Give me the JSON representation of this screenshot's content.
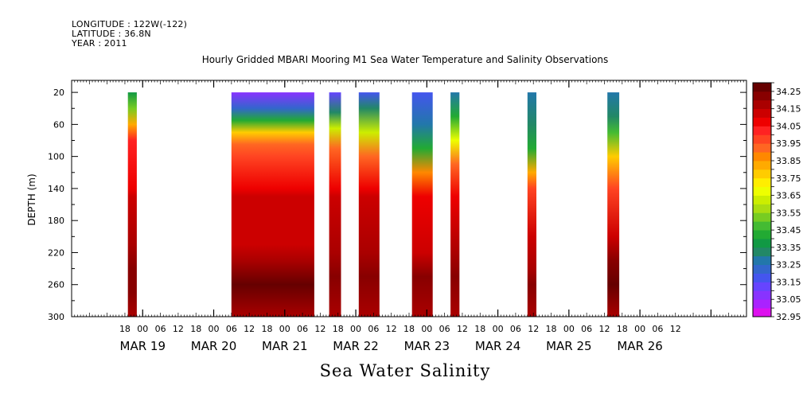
{
  "header": {
    "longitude": "LONGITUDE : 122W(-122)",
    "latitude": "LATITUDE : 36.8N",
    "year": "YEAR : 2011"
  },
  "chart_data": {
    "type": "heatmap",
    "title": "Hourly Gridded MBARI Mooring M1 Sea Water Temperature and Salinity Observations",
    "subtitle": "Sea Water Salinity",
    "xlabel": "",
    "ylabel": "DEPTH (m)",
    "x_range_hours_from_mar19_00": [
      -24,
      204
    ],
    "y_range_depth_m": [
      300,
      5
    ],
    "y_ticks": [
      20,
      60,
      100,
      140,
      180,
      220,
      260,
      300
    ],
    "x_hour_tick_labels": [
      "18",
      "00",
      "06",
      "12",
      "18",
      "00",
      "06",
      "12",
      "18",
      "00",
      "06",
      "12",
      "18",
      "00",
      "06",
      "12",
      "18",
      "00",
      "06",
      "12",
      "18",
      "00",
      "06",
      "12",
      "18",
      "00",
      "06",
      "12",
      "18",
      "00",
      "06",
      "12"
    ],
    "x_day_labels": [
      "MAR 19",
      "MAR 20",
      "MAR 21",
      "MAR 22",
      "MAR 23",
      "MAR 24",
      "MAR 25",
      "MAR 26"
    ],
    "colorbar_levels": [
      32.95,
      33.0,
      33.05,
      33.1,
      33.15,
      33.2,
      33.25,
      33.3,
      33.35,
      33.4,
      33.45,
      33.5,
      33.55,
      33.6,
      33.65,
      33.7,
      33.75,
      33.8,
      33.85,
      33.9,
      33.95,
      34.0,
      34.05,
      34.1,
      34.15,
      34.2,
      34.25,
      34.3
    ],
    "colorbar_labels": [
      "34.25",
      "34.15",
      "34.05",
      "33.95",
      "33.85",
      "33.75",
      "33.65",
      "33.55",
      "33.45",
      "33.35",
      "33.25",
      "33.15",
      "33.05",
      "32.95"
    ],
    "colorbar_colors": [
      "#dd11ee",
      "#aa22ff",
      "#8833ff",
      "#6644ff",
      "#4455ee",
      "#3366cc",
      "#2277aa",
      "#228866",
      "#119944",
      "#22aa33",
      "#44bb33",
      "#77cc22",
      "#aadd11",
      "#ccee00",
      "#eeff00",
      "#ffee00",
      "#ffcc00",
      "#ffaa00",
      "#ff8800",
      "#ff6622",
      "#ff4422",
      "#ff2222",
      "#ee0000",
      "#cc0000",
      "#aa0000",
      "#880000",
      "#660000"
    ],
    "data_segments": [
      {
        "start_hour": -5,
        "end_hour": -2,
        "profile": [
          [
            20,
            33.35
          ],
          [
            40,
            33.5
          ],
          [
            60,
            33.8
          ],
          [
            80,
            34.0
          ],
          [
            140,
            34.05
          ],
          [
            150,
            34.12
          ],
          [
            210,
            34.15
          ],
          [
            240,
            34.2
          ],
          [
            270,
            34.22
          ],
          [
            300,
            34.15
          ]
        ]
      },
      {
        "start_hour": 30,
        "end_hour": 58,
        "profile": [
          [
            20,
            33.08
          ],
          [
            40,
            33.2
          ],
          [
            55,
            33.4
          ],
          [
            70,
            33.75
          ],
          [
            85,
            33.9
          ],
          [
            100,
            33.98
          ],
          [
            140,
            34.05
          ],
          [
            150,
            34.1
          ],
          [
            210,
            34.13
          ],
          [
            230,
            34.18
          ],
          [
            260,
            34.25
          ],
          [
            280,
            34.2
          ],
          [
            300,
            34.15
          ]
        ]
      },
      {
        "start_hour": 63,
        "end_hour": 67,
        "profile": [
          [
            20,
            33.12
          ],
          [
            45,
            33.3
          ],
          [
            65,
            33.6
          ],
          [
            90,
            33.9
          ],
          [
            140,
            34.05
          ],
          [
            150,
            34.1
          ],
          [
            220,
            34.15
          ],
          [
            250,
            34.22
          ],
          [
            300,
            34.15
          ]
        ]
      },
      {
        "start_hour": 73,
        "end_hour": 80,
        "profile": [
          [
            20,
            33.18
          ],
          [
            40,
            33.3
          ],
          [
            70,
            33.6
          ],
          [
            100,
            33.9
          ],
          [
            140,
            34.05
          ],
          [
            150,
            34.1
          ],
          [
            220,
            34.15
          ],
          [
            250,
            34.22
          ],
          [
            300,
            34.15
          ]
        ]
      },
      {
        "start_hour": 91,
        "end_hour": 98,
        "profile": [
          [
            20,
            33.15
          ],
          [
            60,
            33.25
          ],
          [
            90,
            33.4
          ],
          [
            120,
            33.85
          ],
          [
            150,
            34.05
          ],
          [
            220,
            34.12
          ],
          [
            250,
            34.22
          ],
          [
            300,
            34.15
          ]
        ]
      },
      {
        "start_hour": 104,
        "end_hour": 107,
        "profile": [
          [
            20,
            33.28
          ],
          [
            50,
            33.4
          ],
          [
            80,
            33.65
          ],
          [
            110,
            33.9
          ],
          [
            150,
            34.05
          ],
          [
            220,
            34.15
          ],
          [
            250,
            34.22
          ],
          [
            300,
            34.15
          ]
        ]
      },
      {
        "start_hour": 130,
        "end_hour": 133,
        "profile": [
          [
            20,
            33.25
          ],
          [
            60,
            33.3
          ],
          [
            90,
            33.4
          ],
          [
            120,
            33.8
          ],
          [
            140,
            33.95
          ],
          [
            200,
            34.1
          ],
          [
            240,
            34.15
          ],
          [
            260,
            34.22
          ],
          [
            300,
            34.15
          ]
        ]
      },
      {
        "start_hour": 157,
        "end_hour": 161,
        "profile": [
          [
            20,
            33.25
          ],
          [
            50,
            33.3
          ],
          [
            70,
            33.45
          ],
          [
            100,
            33.75
          ],
          [
            140,
            33.95
          ],
          [
            200,
            34.1
          ],
          [
            230,
            34.2
          ],
          [
            260,
            34.25
          ],
          [
            300,
            34.15
          ]
        ]
      }
    ]
  }
}
